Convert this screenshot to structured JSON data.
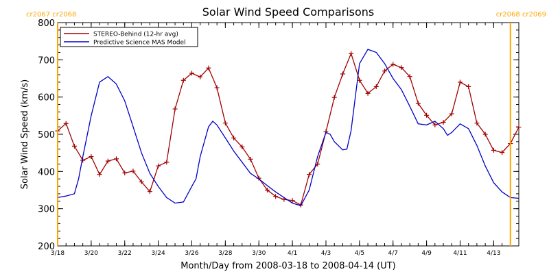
{
  "chart_data": {
    "type": "line",
    "title": "Solar Wind Speed Comparisons",
    "xlabel": "Month/Day from 2008-03-18 to 2008-04-14 (UT)",
    "ylabel": "Solar Wind Speed (km/s)",
    "xlim": [
      "2008-03-18T00:00",
      "2008-04-14T12:00"
    ],
    "ylim": [
      200,
      800
    ],
    "xticks": [
      {
        "date": "2008-03-18",
        "label": "3/18"
      },
      {
        "date": "2008-03-20",
        "label": "3/20"
      },
      {
        "date": "2008-03-22",
        "label": "3/22"
      },
      {
        "date": "2008-03-24",
        "label": "3/24"
      },
      {
        "date": "2008-03-26",
        "label": "3/26"
      },
      {
        "date": "2008-03-28",
        "label": "3/28"
      },
      {
        "date": "2008-03-30",
        "label": "3/30"
      },
      {
        "date": "2008-04-01",
        "label": "4/1"
      },
      {
        "date": "2008-04-03",
        "label": "4/3"
      },
      {
        "date": "2008-04-05",
        "label": "4/5"
      },
      {
        "date": "2008-04-07",
        "label": "4/7"
      },
      {
        "date": "2008-04-09",
        "label": "4/9"
      },
      {
        "date": "2008-04-11",
        "label": "4/11"
      },
      {
        "date": "2008-04-13",
        "label": "4/13"
      }
    ],
    "yticks": [
      200,
      300,
      400,
      500,
      600,
      700,
      800
    ],
    "legend_position": "top-left",
    "series": [
      {
        "name": "STEREO-Behind (12-hr avg)",
        "color": "#a00000",
        "marker": "plus",
        "points": [
          [
            "2008-03-18T00:00",
            509
          ],
          [
            "2008-03-18T12:00",
            529
          ],
          [
            "2008-03-19T00:00",
            468
          ],
          [
            "2008-03-19T12:00",
            430
          ],
          [
            "2008-03-20T00:00",
            440
          ],
          [
            "2008-03-20T12:00",
            392
          ],
          [
            "2008-03-21T00:00",
            428
          ],
          [
            "2008-03-21T12:00",
            434
          ],
          [
            "2008-03-22T00:00",
            396
          ],
          [
            "2008-03-22T12:00",
            401
          ],
          [
            "2008-03-23T00:00",
            372
          ],
          [
            "2008-03-23T12:00",
            346
          ],
          [
            "2008-03-24T00:00",
            415
          ],
          [
            "2008-03-24T12:00",
            425
          ],
          [
            "2008-03-25T00:00",
            568
          ],
          [
            "2008-03-25T12:00",
            645
          ],
          [
            "2008-03-26T00:00",
            664
          ],
          [
            "2008-03-26T12:00",
            654
          ],
          [
            "2008-03-27T00:00",
            678
          ],
          [
            "2008-03-27T12:00",
            625
          ],
          [
            "2008-03-28T00:00",
            530
          ],
          [
            "2008-03-28T12:00",
            490
          ],
          [
            "2008-03-29T00:00",
            466
          ],
          [
            "2008-03-29T12:00",
            433
          ],
          [
            "2008-03-30T00:00",
            382
          ],
          [
            "2008-03-30T12:00",
            350
          ],
          [
            "2008-03-31T00:00",
            333
          ],
          [
            "2008-03-31T12:00",
            325
          ],
          [
            "2008-04-01T00:00",
            322
          ],
          [
            "2008-04-01T12:00",
            310
          ],
          [
            "2008-04-02T00:00",
            392
          ],
          [
            "2008-04-02T12:00",
            420
          ],
          [
            "2008-04-03T00:00",
            507
          ],
          [
            "2008-04-03T12:00",
            599
          ],
          [
            "2008-04-04T00:00",
            662
          ],
          [
            "2008-04-04T12:00",
            717
          ],
          [
            "2008-04-05T00:00",
            645
          ],
          [
            "2008-04-05T12:00",
            610
          ],
          [
            "2008-04-06T00:00",
            628
          ],
          [
            "2008-04-06T12:00",
            670
          ],
          [
            "2008-04-07T00:00",
            688
          ],
          [
            "2008-04-07T12:00",
            679
          ],
          [
            "2008-04-08T00:00",
            655
          ],
          [
            "2008-04-08T12:00",
            583
          ],
          [
            "2008-04-09T00:00",
            551
          ],
          [
            "2008-04-09T12:00",
            525
          ],
          [
            "2008-04-10T00:00",
            532
          ],
          [
            "2008-04-10T12:00",
            555
          ],
          [
            "2008-04-11T00:00",
            640
          ],
          [
            "2008-04-11T12:00",
            628
          ],
          [
            "2008-04-12T00:00",
            530
          ],
          [
            "2008-04-12T12:00",
            500
          ],
          [
            "2008-04-13T00:00",
            457
          ],
          [
            "2008-04-13T12:00",
            451
          ],
          [
            "2008-04-14T00:00",
            475
          ],
          [
            "2008-04-14T12:00",
            519
          ]
        ]
      },
      {
        "name": "Predictive Science MAS Model",
        "color": "#0000c8",
        "marker": "none",
        "points": [
          [
            "2008-03-18T00:00",
            330
          ],
          [
            "2008-03-18T12:00",
            334
          ],
          [
            "2008-03-19T00:00",
            340
          ],
          [
            "2008-03-19T06:00",
            380
          ],
          [
            "2008-03-19T12:00",
            440
          ],
          [
            "2008-03-20T00:00",
            550
          ],
          [
            "2008-03-20T12:00",
            640
          ],
          [
            "2008-03-21T00:00",
            655
          ],
          [
            "2008-03-21T12:00",
            635
          ],
          [
            "2008-03-22T00:00",
            590
          ],
          [
            "2008-03-22T12:00",
            520
          ],
          [
            "2008-03-23T00:00",
            450
          ],
          [
            "2008-03-23T12:00",
            395
          ],
          [
            "2008-03-24T00:00",
            360
          ],
          [
            "2008-03-24T12:00",
            330
          ],
          [
            "2008-03-25T00:00",
            315
          ],
          [
            "2008-03-25T12:00",
            318
          ],
          [
            "2008-03-26T00:00",
            360
          ],
          [
            "2008-03-26T06:00",
            380
          ],
          [
            "2008-03-26T12:00",
            440
          ],
          [
            "2008-03-27T00:00",
            520
          ],
          [
            "2008-03-27T06:00",
            535
          ],
          [
            "2008-03-27T12:00",
            525
          ],
          [
            "2008-03-28T00:00",
            490
          ],
          [
            "2008-03-28T12:00",
            455
          ],
          [
            "2008-03-29T00:00",
            425
          ],
          [
            "2008-03-29T12:00",
            395
          ],
          [
            "2008-03-30T00:00",
            380
          ],
          [
            "2008-03-30T12:00",
            362
          ],
          [
            "2008-03-31T00:00",
            345
          ],
          [
            "2008-03-31T12:00",
            330
          ],
          [
            "2008-04-01T00:00",
            315
          ],
          [
            "2008-04-01T12:00",
            308
          ],
          [
            "2008-04-02T00:00",
            350
          ],
          [
            "2008-04-02T12:00",
            440
          ],
          [
            "2008-04-03T00:00",
            505
          ],
          [
            "2008-04-03T06:00",
            500
          ],
          [
            "2008-04-03T12:00",
            480
          ],
          [
            "2008-04-04T00:00",
            458
          ],
          [
            "2008-04-04T06:00",
            460
          ],
          [
            "2008-04-04T12:00",
            510
          ],
          [
            "2008-04-05T00:00",
            690
          ],
          [
            "2008-04-05T12:00",
            728
          ],
          [
            "2008-04-06T00:00",
            720
          ],
          [
            "2008-04-06T12:00",
            690
          ],
          [
            "2008-04-07T00:00",
            650
          ],
          [
            "2008-04-07T12:00",
            620
          ],
          [
            "2008-04-08T00:00",
            575
          ],
          [
            "2008-04-08T12:00",
            528
          ],
          [
            "2008-04-09T00:00",
            525
          ],
          [
            "2008-04-09T12:00",
            535
          ],
          [
            "2008-04-10T00:00",
            515
          ],
          [
            "2008-04-10T06:00",
            497
          ],
          [
            "2008-04-10T12:00",
            505
          ],
          [
            "2008-04-11T00:00",
            528
          ],
          [
            "2008-04-11T12:00",
            515
          ],
          [
            "2008-04-12T00:00",
            470
          ],
          [
            "2008-04-12T12:00",
            415
          ],
          [
            "2008-04-13T00:00",
            370
          ],
          [
            "2008-04-13T12:00",
            345
          ],
          [
            "2008-04-14T00:00",
            330
          ],
          [
            "2008-04-14T12:00",
            328
          ]
        ]
      }
    ],
    "markers": [
      {
        "date": "2008-03-18T00:00",
        "color": "#ffa500",
        "labels": [
          "cr2067",
          "cr2068"
        ],
        "side": "left"
      },
      {
        "date": "2008-04-14T00:00",
        "color": "#ffa500",
        "labels": [
          "cr2068",
          "cr2069"
        ],
        "side": "right"
      }
    ]
  }
}
